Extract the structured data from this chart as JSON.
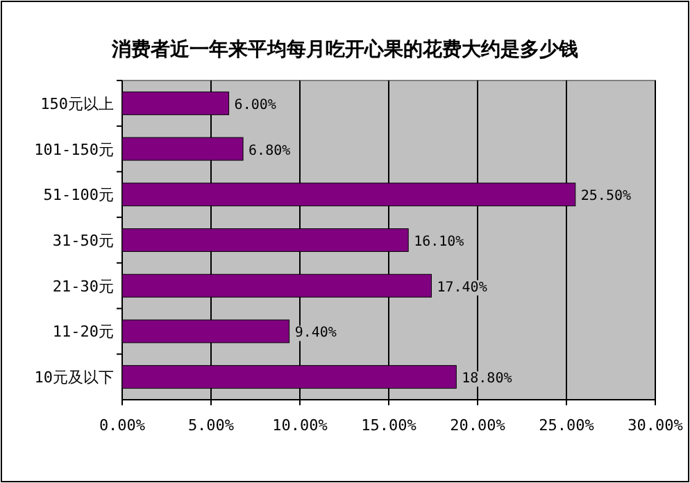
{
  "chart_data": {
    "type": "bar",
    "orientation": "horizontal",
    "title": "消费者近一年来平均每月吃开心果的花费大约是多少钱",
    "categories": [
      "150元以上",
      "101-150元",
      "51-100元",
      "31-50元",
      "21-30元",
      "11-20元",
      "10元及以下"
    ],
    "values": [
      6.0,
      6.8,
      25.5,
      16.1,
      17.4,
      9.4,
      18.8
    ],
    "value_labels": [
      "6.00%",
      "6.80%",
      "25.50%",
      "16.10%",
      "17.40%",
      "9.40%",
      "18.80%"
    ],
    "color": "#800080",
    "xlim": [
      0,
      30
    ],
    "xticks": [
      {
        "value": 0,
        "label": "0.00%"
      },
      {
        "value": 5,
        "label": "5.00%"
      },
      {
        "value": 10,
        "label": "10.00%"
      },
      {
        "value": 15,
        "label": "15.00%"
      },
      {
        "value": 20,
        "label": "20.00%"
      },
      {
        "value": 25,
        "label": "25.00%"
      },
      {
        "value": 30,
        "label": "30.00%"
      }
    ],
    "grid": "x"
  }
}
